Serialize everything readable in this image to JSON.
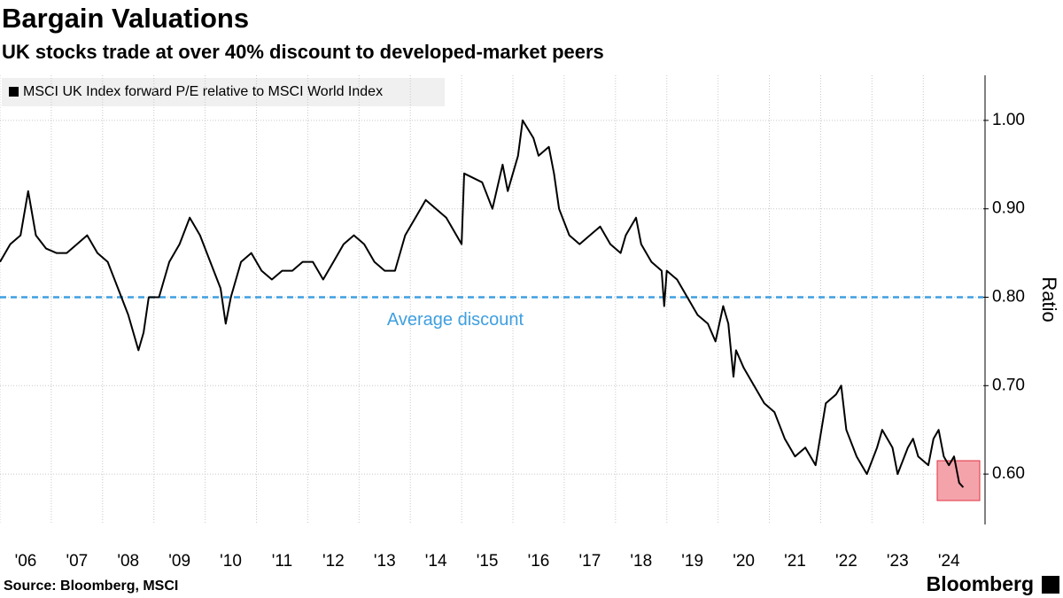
{
  "chart_data": {
    "type": "line",
    "title": "Bargain Valuations",
    "subtitle": "UK stocks trade at over 40% discount to developed-market peers",
    "y_label": "Ratio",
    "source": "Source: Bloomberg, MSCI",
    "brand": "Bloomberg",
    "annotation": "Average discount",
    "average": 0.8,
    "average_color": "#3f9fe0",
    "x": [
      2006.0,
      2006.2,
      2006.4,
      2006.55,
      2006.7,
      2006.9,
      2007.1,
      2007.3,
      2007.5,
      2007.7,
      2007.9,
      2008.1,
      2008.3,
      2008.5,
      2008.7,
      2008.8,
      2008.9,
      2009.1,
      2009.3,
      2009.5,
      2009.7,
      2009.9,
      2010.1,
      2010.3,
      2010.4,
      2010.5,
      2010.7,
      2010.9,
      2011.1,
      2011.3,
      2011.5,
      2011.7,
      2011.9,
      2012.1,
      2012.3,
      2012.5,
      2012.7,
      2012.9,
      2013.1,
      2013.3,
      2013.5,
      2013.7,
      2013.9,
      2014.1,
      2014.3,
      2014.5,
      2014.7,
      2014.9,
      2015.0,
      2015.05,
      2015.4,
      2015.6,
      2015.8,
      2015.9,
      2016.1,
      2016.19,
      2016.4,
      2016.5,
      2016.7,
      2016.8,
      2016.9,
      2017.1,
      2017.3,
      2017.5,
      2017.7,
      2017.9,
      2018.1,
      2018.2,
      2018.4,
      2018.5,
      2018.7,
      2018.9,
      2018.95,
      2019.0,
      2019.2,
      2019.4,
      2019.6,
      2019.8,
      2019.95,
      2020.1,
      2020.2,
      2020.3,
      2020.35,
      2020.5,
      2020.7,
      2020.9,
      2021.1,
      2021.3,
      2021.5,
      2021.7,
      2021.9,
      2022.1,
      2022.3,
      2022.4,
      2022.5,
      2022.7,
      2022.9,
      2023.1,
      2023.2,
      2023.4,
      2023.5,
      2023.7,
      2023.8,
      2023.9,
      2024.1,
      2024.2,
      2024.3,
      2024.4,
      2024.5,
      2024.6,
      2024.7,
      2024.78
    ],
    "series": [
      {
        "name": "MSCI UK Index forward P/E relative to MSCI World Index",
        "color": "#000000",
        "values": [
          0.84,
          0.86,
          0.87,
          0.92,
          0.87,
          0.855,
          0.85,
          0.85,
          0.86,
          0.87,
          0.85,
          0.84,
          0.81,
          0.78,
          0.74,
          0.76,
          0.8,
          0.8,
          0.84,
          0.86,
          0.89,
          0.87,
          0.84,
          0.81,
          0.77,
          0.8,
          0.84,
          0.85,
          0.83,
          0.82,
          0.83,
          0.83,
          0.84,
          0.84,
          0.82,
          0.84,
          0.86,
          0.87,
          0.86,
          0.84,
          0.83,
          0.83,
          0.87,
          0.89,
          0.91,
          0.9,
          0.89,
          0.87,
          0.86,
          0.94,
          0.93,
          0.9,
          0.95,
          0.92,
          0.96,
          1.0,
          0.98,
          0.96,
          0.97,
          0.94,
          0.9,
          0.87,
          0.86,
          0.87,
          0.88,
          0.86,
          0.85,
          0.87,
          0.89,
          0.86,
          0.84,
          0.83,
          0.79,
          0.83,
          0.82,
          0.8,
          0.78,
          0.77,
          0.75,
          0.79,
          0.77,
          0.71,
          0.74,
          0.72,
          0.7,
          0.68,
          0.67,
          0.64,
          0.62,
          0.63,
          0.61,
          0.68,
          0.69,
          0.7,
          0.65,
          0.62,
          0.6,
          0.63,
          0.65,
          0.63,
          0.6,
          0.63,
          0.64,
          0.62,
          0.61,
          0.64,
          0.65,
          0.62,
          0.61,
          0.62,
          0.59,
          0.585
        ]
      }
    ],
    "xlim": [
      2006,
      2025.17
    ],
    "xticks": [
      {
        "value": 2006,
        "label": "'06"
      },
      {
        "value": 2007,
        "label": "'07"
      },
      {
        "value": 2008,
        "label": "'08"
      },
      {
        "value": 2009,
        "label": "'09"
      },
      {
        "value": 2010,
        "label": "'10"
      },
      {
        "value": 2011,
        "label": "'11"
      },
      {
        "value": 2012,
        "label": "'12"
      },
      {
        "value": 2013,
        "label": "'13"
      },
      {
        "value": 2014,
        "label": "'14"
      },
      {
        "value": 2015,
        "label": "'15"
      },
      {
        "value": 2016,
        "label": "'16"
      },
      {
        "value": 2017,
        "label": "'17"
      },
      {
        "value": 2018,
        "label": "'18"
      },
      {
        "value": 2019,
        "label": "'19"
      },
      {
        "value": 2020,
        "label": "'20"
      },
      {
        "value": 2021,
        "label": "'21"
      },
      {
        "value": 2022,
        "label": "'22"
      },
      {
        "value": 2023,
        "label": "'23"
      },
      {
        "value": 2024,
        "label": "'24"
      }
    ],
    "ylim": [
      0.543,
      1.051
    ],
    "yticks": [
      {
        "value": 0.6,
        "label": "0.60"
      },
      {
        "value": 0.7,
        "label": "0.70"
      },
      {
        "value": 0.8,
        "label": "0.80"
      },
      {
        "value": 0.9,
        "label": "0.90"
      },
      {
        "value": 1.0,
        "label": "1.00"
      }
    ],
    "grid": true
  }
}
